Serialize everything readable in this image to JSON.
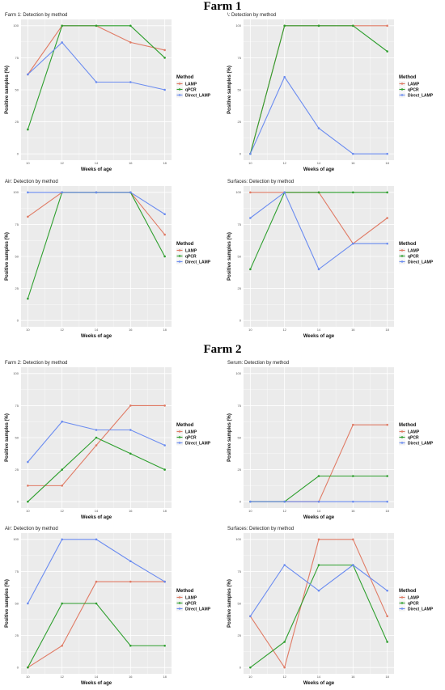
{
  "sections": {
    "farm1_title": "Farm 1",
    "farm2_title": "Farm 2"
  },
  "colors": {
    "LAMP": "#E07B65",
    "qPCR": "#2E9F2E",
    "Direct_LAMP": "#6B8CF0",
    "panel_bg": "#EBEBEB",
    "grid": "#FFFFFF"
  },
  "chart_data": [
    {
      "type": "line",
      "title": "Farm 1: Detection by method",
      "xlabel": "Weeks of age",
      "ylabel": "Positive samples (%)",
      "x": [
        10,
        12,
        14,
        16,
        18
      ],
      "ylim": [
        0,
        100
      ],
      "yticks": [
        0,
        25,
        50,
        75,
        100
      ],
      "legend_title": "Method",
      "series": [
        {
          "name": "LAMP",
          "values": [
            62,
            100,
            100,
            87,
            81
          ]
        },
        {
          "name": "qPCR",
          "values": [
            19,
            100,
            100,
            100,
            75
          ]
        },
        {
          "name": "Direct_LAMP",
          "values": [
            62,
            87,
            56,
            56,
            50
          ]
        }
      ]
    },
    {
      "type": "line",
      "title": "\\: Detection by method",
      "xlabel": "Weeks of age",
      "ylabel": "Positive samples (%)",
      "x": [
        10,
        12,
        14,
        16,
        18
      ],
      "ylim": [
        0,
        100
      ],
      "yticks": [
        0,
        25,
        50,
        75,
        100
      ],
      "legend_title": "Method",
      "series": [
        {
          "name": "LAMP",
          "values": [
            0,
            100,
            100,
            100,
            100
          ]
        },
        {
          "name": "qPCR",
          "values": [
            0,
            100,
            100,
            100,
            80
          ]
        },
        {
          "name": "Direct_LAMP",
          "values": [
            0,
            60,
            20,
            0,
            0
          ]
        }
      ]
    },
    {
      "type": "line",
      "title": "Air: Detection by method",
      "xlabel": "Weeks of age",
      "ylabel": "Positive samples (%)",
      "x": [
        10,
        12,
        14,
        16,
        18
      ],
      "ylim": [
        0,
        100
      ],
      "yticks": [
        0,
        25,
        50,
        75,
        100
      ],
      "legend_title": "Method",
      "series": [
        {
          "name": "LAMP",
          "values": [
            81,
            100,
            100,
            100,
            67
          ]
        },
        {
          "name": "qPCR",
          "values": [
            17,
            100,
            100,
            100,
            50
          ]
        },
        {
          "name": "Direct_LAMP",
          "values": [
            100,
            100,
            100,
            100,
            83
          ]
        }
      ]
    },
    {
      "type": "line",
      "title": "Surfaces: Detection by method",
      "xlabel": "Weeks of age",
      "ylabel": "Positive samples (%)",
      "x": [
        10,
        12,
        14,
        16,
        18
      ],
      "ylim": [
        0,
        100
      ],
      "yticks": [
        0,
        25,
        50,
        75,
        100
      ],
      "legend_title": "Method",
      "series": [
        {
          "name": "LAMP",
          "values": [
            100,
            100,
            100,
            60,
            80
          ]
        },
        {
          "name": "qPCR",
          "values": [
            40,
            100,
            100,
            100,
            100
          ]
        },
        {
          "name": "Direct_LAMP",
          "values": [
            80,
            100,
            40,
            60,
            60
          ]
        }
      ]
    },
    {
      "type": "line",
      "title": "Farm 2: Detection by method",
      "xlabel": "Weeks of age",
      "ylabel": "Positive samples (%)",
      "x": [
        10,
        12,
        14,
        16,
        18
      ],
      "ylim": [
        0,
        100
      ],
      "yticks": [
        0,
        25,
        50,
        75,
        100
      ],
      "legend_title": "Method",
      "series": [
        {
          "name": "LAMP",
          "values": [
            12.5,
            12.5,
            44,
            75,
            75
          ]
        },
        {
          "name": "qPCR",
          "values": [
            0,
            25,
            50,
            37.5,
            25
          ]
        },
        {
          "name": "Direct_LAMP",
          "values": [
            31,
            62.5,
            56,
            56,
            44
          ]
        }
      ]
    },
    {
      "type": "line",
      "title": "Serum: Detection by method",
      "xlabel": "Weeks of age",
      "ylabel": "Positive samples (%)",
      "x": [
        10,
        12,
        14,
        16,
        18
      ],
      "ylim": [
        0,
        100
      ],
      "yticks": [
        0,
        25,
        50,
        75,
        100
      ],
      "legend_title": "Method",
      "series": [
        {
          "name": "LAMP",
          "values": [
            0,
            0,
            0,
            60,
            60
          ]
        },
        {
          "name": "qPCR",
          "values": [
            0,
            0,
            20,
            20,
            20
          ]
        },
        {
          "name": "Direct_LAMP",
          "values": [
            0,
            0,
            0,
            0,
            0
          ]
        }
      ]
    },
    {
      "type": "line",
      "title": "Air: Detection by method",
      "xlabel": "Weeks of age",
      "ylabel": "Positive samples (%)",
      "x": [
        10,
        12,
        14,
        16,
        18
      ],
      "ylim": [
        0,
        100
      ],
      "yticks": [
        0,
        25,
        50,
        75,
        100
      ],
      "legend_title": "Method",
      "series": [
        {
          "name": "LAMP",
          "values": [
            0,
            17,
            67,
            67,
            67
          ]
        },
        {
          "name": "qPCR",
          "values": [
            0,
            50,
            50,
            17,
            17
          ]
        },
        {
          "name": "Direct_LAMP",
          "values": [
            50,
            100,
            100,
            83,
            67
          ]
        }
      ]
    },
    {
      "type": "line",
      "title": "Surfaces: Detection by method",
      "xlabel": "Weeks of age",
      "ylabel": "Positive samples (%)",
      "x": [
        10,
        12,
        14,
        16,
        18
      ],
      "ylim": [
        0,
        100
      ],
      "yticks": [
        0,
        25,
        50,
        75,
        100
      ],
      "legend_title": "Method",
      "series": [
        {
          "name": "LAMP",
          "values": [
            40,
            0,
            100,
            100,
            40
          ]
        },
        {
          "name": "qPCR",
          "values": [
            0,
            20,
            80,
            80,
            20
          ]
        },
        {
          "name": "Direct_LAMP",
          "values": [
            40,
            80,
            60,
            80,
            60
          ]
        }
      ]
    }
  ]
}
